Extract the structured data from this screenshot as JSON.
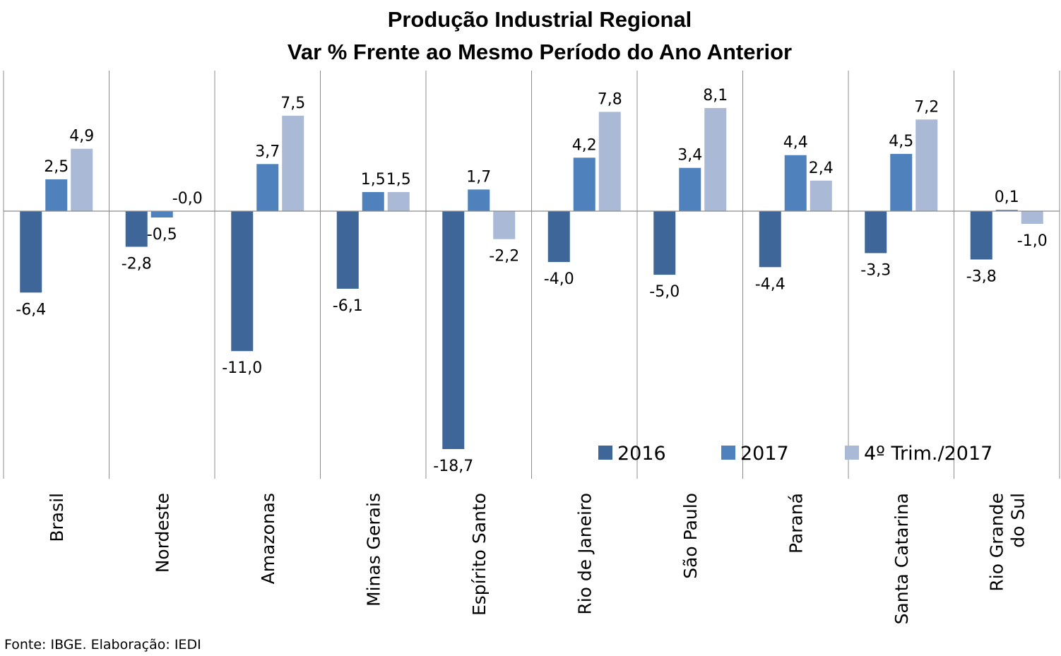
{
  "chart_data": {
    "type": "bar",
    "title": [
      "Produção Industrial Regional",
      "Var % Frente ao Mesmo Período do Ano Anterior"
    ],
    "categories": [
      [
        "Brasil"
      ],
      [
        "Nordeste"
      ],
      [
        "Amazonas"
      ],
      [
        "Minas Gerais"
      ],
      [
        "Espírito Santo"
      ],
      [
        "Rio de Janeiro"
      ],
      [
        "São Paulo"
      ],
      [
        "Paraná"
      ],
      [
        "Santa Catarina"
      ],
      [
        "Rio Grande",
        "do Sul"
      ]
    ],
    "series": [
      {
        "name": "2016",
        "color": "#3F6699",
        "values": [
          -6.4,
          -2.8,
          -11.0,
          -6.1,
          -18.7,
          -4.0,
          -5.0,
          -4.4,
          -3.3,
          -3.8
        ],
        "labels": [
          "-6,4",
          "-2,8",
          "-11,0",
          "-6,1",
          "-18,7",
          "-4,0",
          "-5,0",
          "-4,4",
          "-3,3",
          "-3,8"
        ]
      },
      {
        "name": "2017",
        "color": "#4F81BD",
        "values": [
          2.5,
          -0.5,
          3.7,
          1.5,
          1.7,
          4.2,
          3.4,
          4.4,
          4.5,
          0.1
        ],
        "labels": [
          "2,5",
          "-0,5",
          "3,7",
          "1,5",
          "1,7",
          "4,2",
          "3,4",
          "4,4",
          "4,5",
          "0,1"
        ]
      },
      {
        "name": "4º Trim./2017",
        "color": "#A9B9D6",
        "values": [
          4.9,
          0.0,
          7.5,
          1.5,
          -2.2,
          7.8,
          8.1,
          2.4,
          7.2,
          -1.0
        ],
        "labels": [
          "4,9",
          "-0,0",
          "7,5",
          "1,5",
          "-2,2",
          "7,8",
          "8,1",
          "2,4",
          "7,2",
          "-1,0"
        ]
      }
    ],
    "ylim": [
      -21,
      11
    ],
    "grid": false,
    "legend_position": "bottom-right",
    "source": "Fonte: IBGE. Elaboração: IEDI"
  }
}
